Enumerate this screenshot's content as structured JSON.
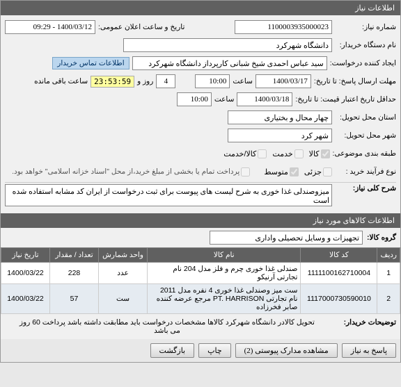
{
  "header": {
    "title": "اطلاعات نیاز"
  },
  "form": {
    "need_no_label": "شماره نیاز:",
    "need_no": "1100003935000023",
    "public_date_label": "تاریخ و ساعت اعلان عمومی:",
    "public_date": "1400/03/12 - 09:29",
    "buyer_org_label": "نام دستگاه خریدار:",
    "buyer_org": "دانشگاه شهرکرد",
    "creator_label": "ایجاد کننده درخواست:",
    "creator": "سید عباس احمدی شیخ شبانی کارپرداز دانشگاه شهرکرد",
    "contact_link": "اطلاعات تماس خریدار",
    "deadline_label": "مهلت ارسال پاسخ: تا تاریخ:",
    "deadline_date": "1400/03/17",
    "time_label": "ساعت",
    "deadline_time": "10:00",
    "remain_days": "4",
    "remain_days_label": "روز و",
    "countdown": "23:53:59",
    "remain_suffix": "ساعت باقی مانده",
    "validity_label": "حداقل تاریخ اعتبار قیمت: تا تاریخ:",
    "validity_date": "1400/03/18",
    "validity_time": "10:00",
    "province_label": "استان محل تحویل:",
    "province": "چهار محال و بختیاری",
    "city_label": "شهر محل تحویل:",
    "city": "شهر کرد",
    "budget_label": "طبقه بندی موضوعی:",
    "cb_goods": "کالا",
    "cb_service": "خدمت",
    "cb_goods_service": "کالا/خدمت",
    "process_label": "نوع فرآیند خرید :",
    "cb_small": "جزئی",
    "cb_medium": "متوسط",
    "payment_hint": "پرداخت تمام یا بخشی از مبلغ خرید،از محل \"اسناد خزانه اسلامی\" خواهد بود.",
    "desc_label": "شرح کلی نیاز:",
    "desc": "میزوصندلی غذا خوری به شرح لیست های پیوست برای ثبت درخواست از ایران کد مشابه استفاده شده است"
  },
  "items_header": "اطلاعات کالاهای مورد نیاز",
  "group_label": "گروه کالا:",
  "group_value": "تجهیزات و وسایل تحصیلی واداری",
  "table": {
    "cols": [
      "ردیف",
      "کد کالا",
      "نام کالا",
      "واحد شمارش",
      "تعداد / مقدار",
      "تاریخ نیاز"
    ],
    "rows": [
      [
        "1",
        "1111100162710004",
        "صندلی غذا خوری چرم و فلز مدل 204 نام تجارتی آرنیکو",
        "عدد",
        "228",
        "1400/03/22"
      ],
      [
        "2",
        "1117000730590010",
        "ست میز وصندلی غذا خوری 4 نفره مدل 2011 نام تجارتی PT. HARRISON مرجع عرضه کننده صابر فخرزاده",
        "ست",
        "57",
        "1400/03/22"
      ]
    ]
  },
  "buyer_note_label": "توضیحات خریدار:",
  "buyer_note": "تحویل کالادر دانشگاه شهرکرد کالاها مشخصات درخواست باید مطابقت داشته باشد پرداخت 60 روز می باشد",
  "buttons": {
    "answer": "پاسخ به نیاز",
    "attach": "مشاهده مدارک پیوستی (2)",
    "print": "چاپ",
    "back": "بازگشت"
  }
}
